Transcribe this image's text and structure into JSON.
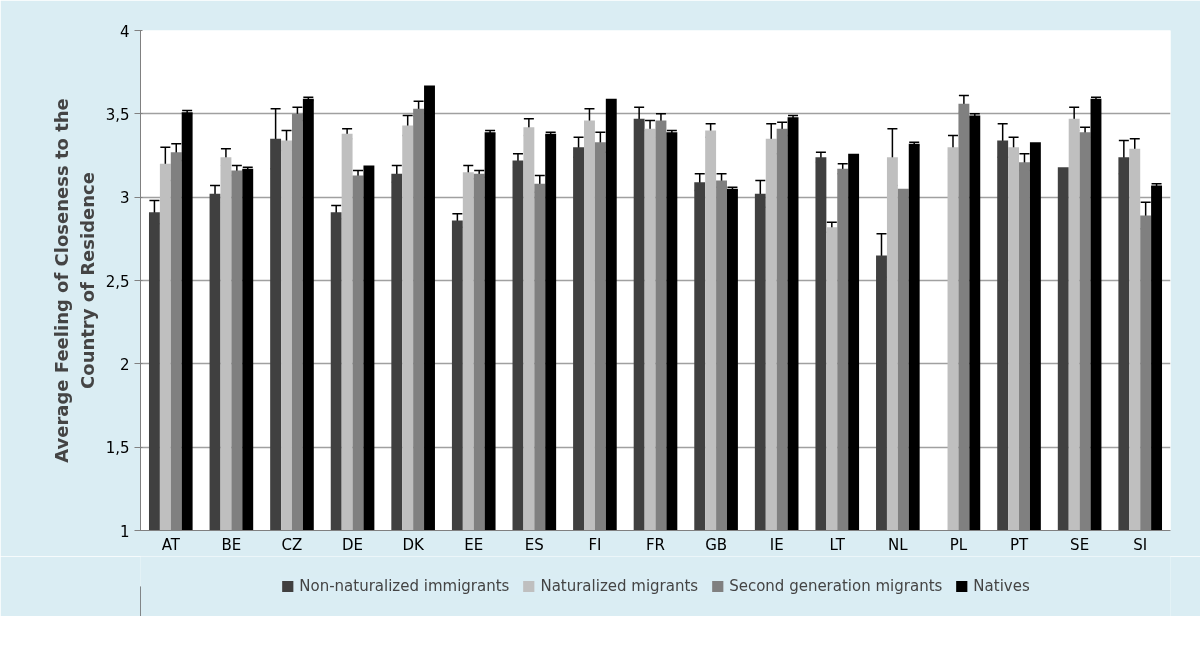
{
  "chart_data": {
    "type": "bar",
    "ylabel": "Average Feeling of Closeness to the\nCountry of Residence",
    "categories": [
      "AT",
      "BE",
      "CZ",
      "DE",
      "DK",
      "EE",
      "ES",
      "FI",
      "FR",
      "GB",
      "IE",
      "LT",
      "NL",
      "PL",
      "PT",
      "SE",
      "SI"
    ],
    "series": [
      {
        "name": "Non-naturalized immigrants",
        "color": "#404040",
        "values": [
          2.91,
          3.02,
          3.35,
          2.91,
          3.14,
          2.86,
          3.22,
          3.3,
          3.47,
          3.09,
          3.02,
          3.24,
          2.65,
          null,
          3.34,
          3.18,
          3.24
        ],
        "errors": [
          0.07,
          0.05,
          0.18,
          0.04,
          0.05,
          0.04,
          0.04,
          0.06,
          0.07,
          0.05,
          0.08,
          0.03,
          0.13,
          null,
          0.1,
          null,
          0.1
        ]
      },
      {
        "name": "Naturalized migrants",
        "color": "#bfbfbf",
        "values": [
          3.2,
          3.24,
          3.34,
          3.38,
          3.43,
          3.15,
          3.42,
          3.46,
          3.41,
          3.4,
          3.35,
          2.82,
          3.24,
          3.3,
          3.3,
          3.47,
          3.29
        ],
        "errors": [
          0.1,
          0.05,
          0.06,
          0.03,
          0.06,
          0.04,
          0.05,
          0.07,
          0.05,
          0.04,
          0.09,
          0.03,
          0.17,
          0.07,
          0.06,
          0.07,
          0.06
        ]
      },
      {
        "name": "Second generation migrants",
        "color": "#808080",
        "values": [
          3.27,
          3.16,
          3.5,
          3.13,
          3.53,
          3.14,
          3.08,
          3.33,
          3.46,
          3.1,
          3.41,
          3.17,
          3.05,
          3.56,
          3.21,
          3.39,
          2.89
        ],
        "errors": [
          0.05,
          0.03,
          0.04,
          0.03,
          0.045,
          0.02,
          0.05,
          0.06,
          0.04,
          0.04,
          0.04,
          0.03,
          null,
          0.05,
          0.05,
          0.03,
          0.08
        ]
      },
      {
        "name": "Natives",
        "color": "#000000",
        "values": [
          3.51,
          3.17,
          3.59,
          3.19,
          3.67,
          3.39,
          3.38,
          3.59,
          3.39,
          3.05,
          3.48,
          3.26,
          3.32,
          3.49,
          3.33,
          3.59,
          3.07
        ],
        "errors": [
          0.01,
          0.01,
          0.01,
          null,
          null,
          0.01,
          0.01,
          null,
          0.01,
          0.01,
          0.01,
          null,
          0.01,
          0.01,
          null,
          0.01,
          0.01
        ]
      }
    ],
    "ylim": [
      1,
      4
    ],
    "yticks": [
      1,
      {
        "value": 1.5,
        "label": "1,5"
      },
      2,
      {
        "value": 2.5,
        "label": "2,5"
      },
      3,
      {
        "value": 3.5,
        "label": "3,5"
      },
      4
    ],
    "grid": "y",
    "legend": "bottom"
  }
}
